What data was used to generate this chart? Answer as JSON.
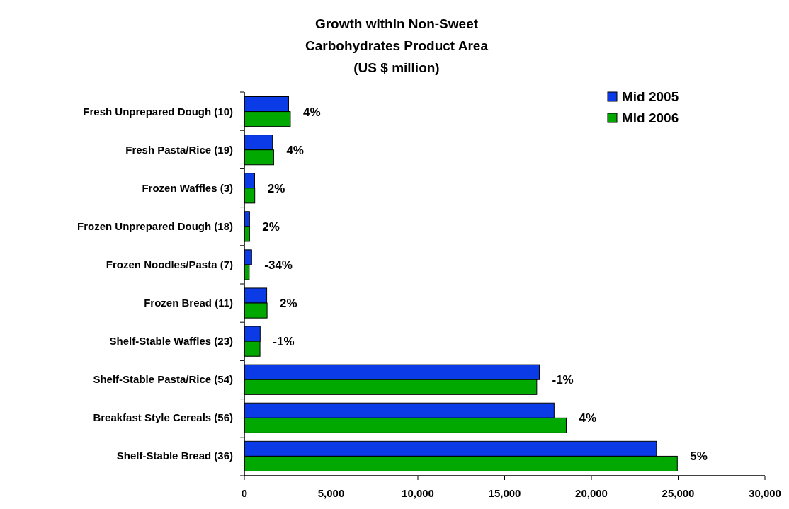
{
  "chart_data": {
    "type": "bar",
    "orientation": "horizontal",
    "title": "Growth within Non-Sweet\nCarbohydrates Product Area\n(US $ million)",
    "categories": [
      "Fresh Unprepared Dough (10)",
      "Fresh Pasta/Rice (19)",
      "Frozen Waffles (3)",
      "Frozen Unprepared Dough (18)",
      "Frozen Noodles/Pasta (7)",
      "Frozen Bread (11)",
      "Shelf-Stable Waffles (23)",
      "Shelf-Stable Pasta/Rice (54)",
      "Breakfast Style Cereals (56)",
      "Shelf-Stable Bread (36)"
    ],
    "series": [
      {
        "name": "Mid 2005",
        "color": "#0a3be6",
        "values": [
          2550,
          1620,
          590,
          300,
          420,
          1290,
          910,
          17000,
          17850,
          23750
        ]
      },
      {
        "name": "Mid 2006",
        "color": "#00a800",
        "values": [
          2650,
          1690,
          600,
          300,
          280,
          1310,
          900,
          16850,
          18550,
          24950
        ]
      }
    ],
    "annotations": [
      {
        "text": "4%",
        "x": 2650,
        "y": "Fresh Unprepared Dough (10)"
      },
      {
        "text": "4%",
        "x": 1690,
        "y": "Fresh Pasta/Rice (19)"
      },
      {
        "text": "2%",
        "x": 600,
        "y": "Frozen Waffles (3)"
      },
      {
        "text": "2%",
        "x": 300,
        "y": "Frozen Unprepared Dough (18)"
      },
      {
        "text": "-34%",
        "x": 420,
        "y": "Frozen Noodles/Pasta (7)"
      },
      {
        "text": "2%",
        "x": 1310,
        "y": "Frozen Bread (11)"
      },
      {
        "text": "-1%",
        "x": 910,
        "y": "Shelf-Stable Waffles (23)"
      },
      {
        "text": "-1%",
        "x": 17000,
        "y": "Shelf-Stable Pasta/Rice (54)"
      },
      {
        "text": "4%",
        "x": 18550,
        "y": "Breakfast Style Cereals (56)"
      },
      {
        "text": "5%",
        "x": 24950,
        "y": "Shelf-Stable Bread (36)"
      }
    ],
    "xlim": [
      0,
      30000
    ],
    "xticks": [
      {
        "value": 0,
        "label": "0"
      },
      {
        "value": 5000,
        "label": "5,000"
      },
      {
        "value": 10000,
        "label": "10,000"
      },
      {
        "value": 15000,
        "label": "15,000"
      },
      {
        "value": 20000,
        "label": "20,000"
      },
      {
        "value": 25000,
        "label": "25,000"
      },
      {
        "value": 30000,
        "label": "30,000"
      }
    ],
    "grid": false,
    "legend": "top right"
  }
}
